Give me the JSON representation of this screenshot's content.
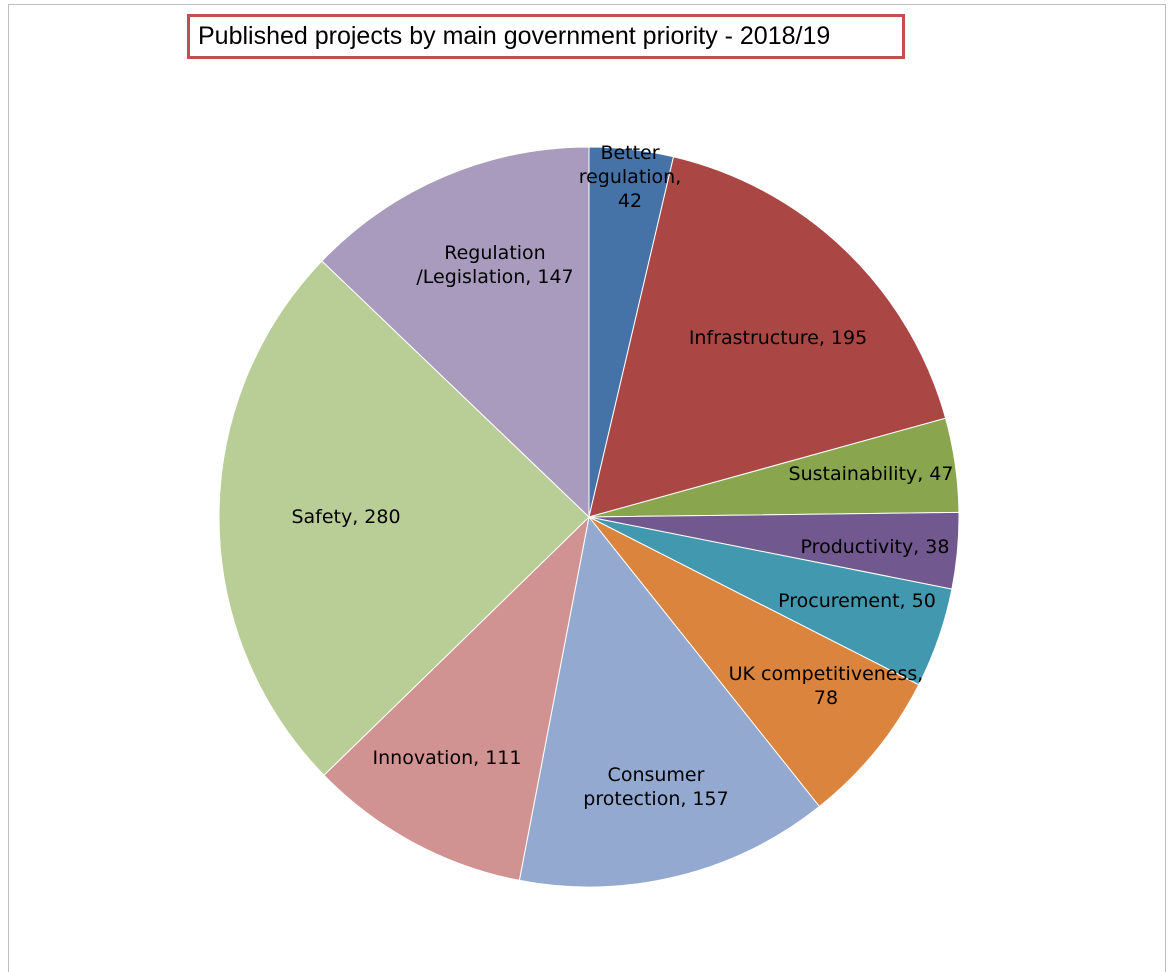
{
  "chart_data": {
    "type": "pie",
    "title": "Published projects by main government priority - 2018/19",
    "slices": [
      {
        "label": "Better regulation",
        "value": 42,
        "color": "#4572a7",
        "label_lines": [
          "Better",
          "regulation,",
          "42"
        ]
      },
      {
        "label": "Infrastructure",
        "value": 195,
        "color": "#aa4643",
        "label_lines": [
          "Infrastructure, 195"
        ]
      },
      {
        "label": "Sustainability",
        "value": 47,
        "color": "#89a54e",
        "label_lines": [
          "Sustainability, 47"
        ]
      },
      {
        "label": "Productivity",
        "value": 38,
        "color": "#71588f",
        "label_lines": [
          "Productivity, 38"
        ]
      },
      {
        "label": "Procurement",
        "value": 50,
        "color": "#4198af",
        "label_lines": [
          "Procurement, 50"
        ]
      },
      {
        "label": "UK competitiveness",
        "value": 78,
        "color": "#db843d",
        "label_lines": [
          "UK competitiveness,",
          "78"
        ]
      },
      {
        "label": "Consumer protection",
        "value": 157,
        "color": "#93a9cf",
        "label_lines": [
          "Consumer",
          "protection, 157"
        ]
      },
      {
        "label": "Innovation",
        "value": 111,
        "color": "#d19392",
        "label_lines": [
          "Innovation, 111"
        ]
      },
      {
        "label": "Safety",
        "value": 280,
        "color": "#b9cd96",
        "label_lines": [
          "Safety, 280"
        ]
      },
      {
        "label": "Regulation /Legislation",
        "value": 147,
        "color": "#a99bbd",
        "label_lines": [
          "Regulation",
          "/Legislation, 147"
        ]
      }
    ]
  }
}
